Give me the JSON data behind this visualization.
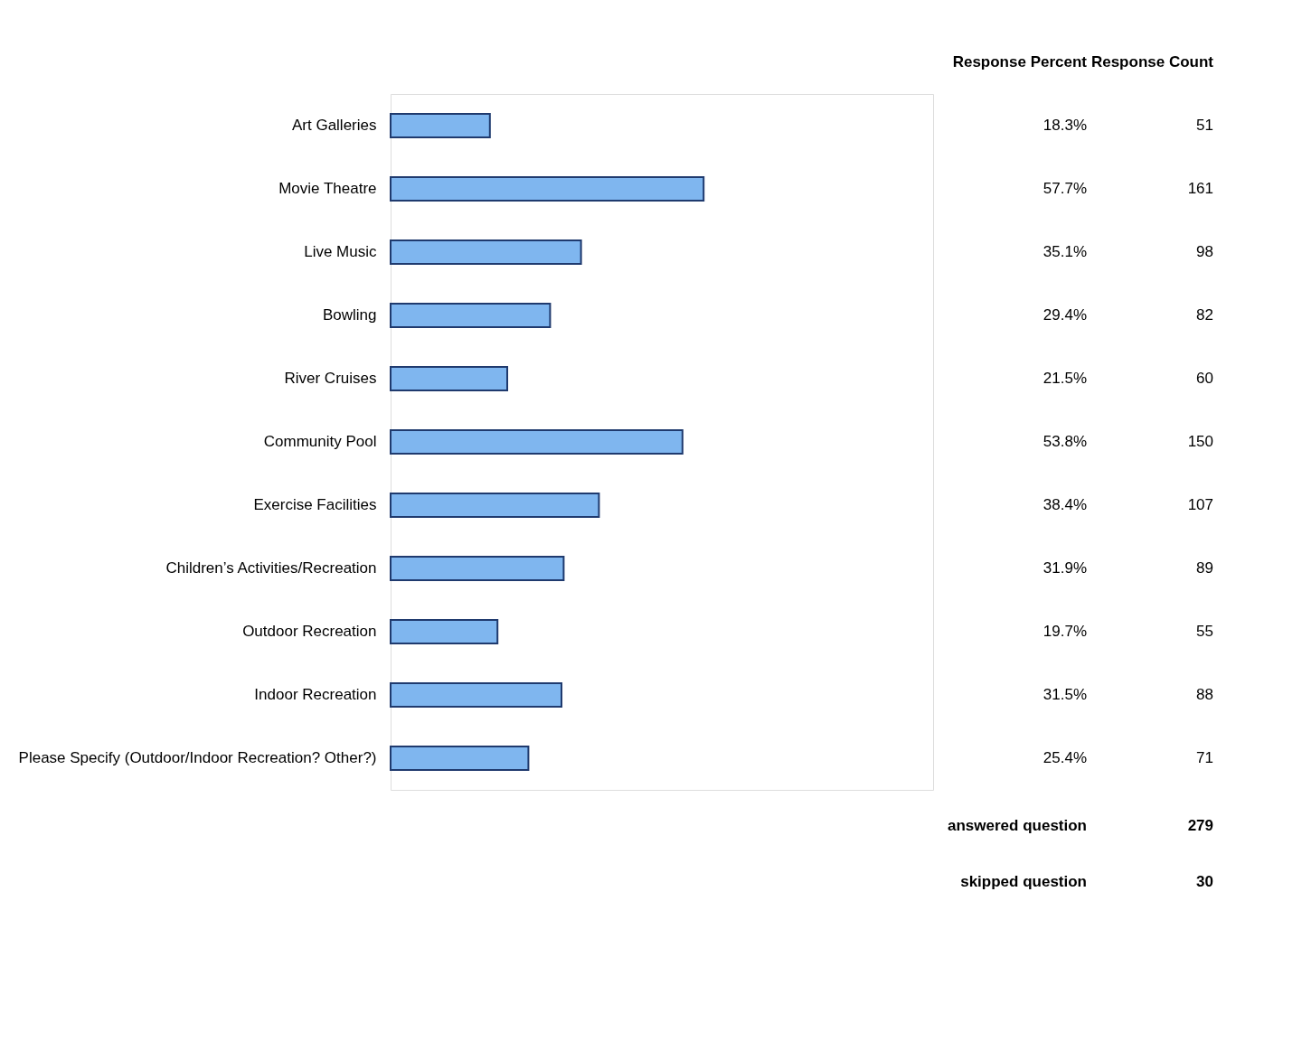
{
  "chart_data": {
    "type": "bar",
    "orientation": "horizontal",
    "categories": [
      "Art Galleries",
      "Movie Theatre",
      "Live Music",
      "Bowling",
      "River Cruises",
      "Community Pool",
      "Exercise Facilities",
      "Children’s Activities/Recreation",
      "Outdoor Recreation",
      "Indoor Recreation",
      "Please Specify (Outdoor/Indoor Recreation? Other?)"
    ],
    "values": [
      18.3,
      57.7,
      35.1,
      29.4,
      21.5,
      53.8,
      38.4,
      31.9,
      19.7,
      31.5,
      25.4
    ],
    "value_labels": [
      "18.3%",
      "57.7%",
      "35.1%",
      "29.4%",
      "21.5%",
      "53.8%",
      "38.4%",
      "31.9%",
      "19.7%",
      "31.5%",
      "25.4%"
    ],
    "color": "#7fb6ef",
    "xlim": [
      0,
      100
    ],
    "tick_labels": "y",
    "annotations": [
      "Response Percent",
      "Response Count",
      "51",
      "161",
      "98",
      "82",
      "60",
      "150",
      "107",
      "89",
      "55",
      "88",
      "71",
      "answered question",
      "279",
      "skipped question",
      "30"
    ]
  }
}
